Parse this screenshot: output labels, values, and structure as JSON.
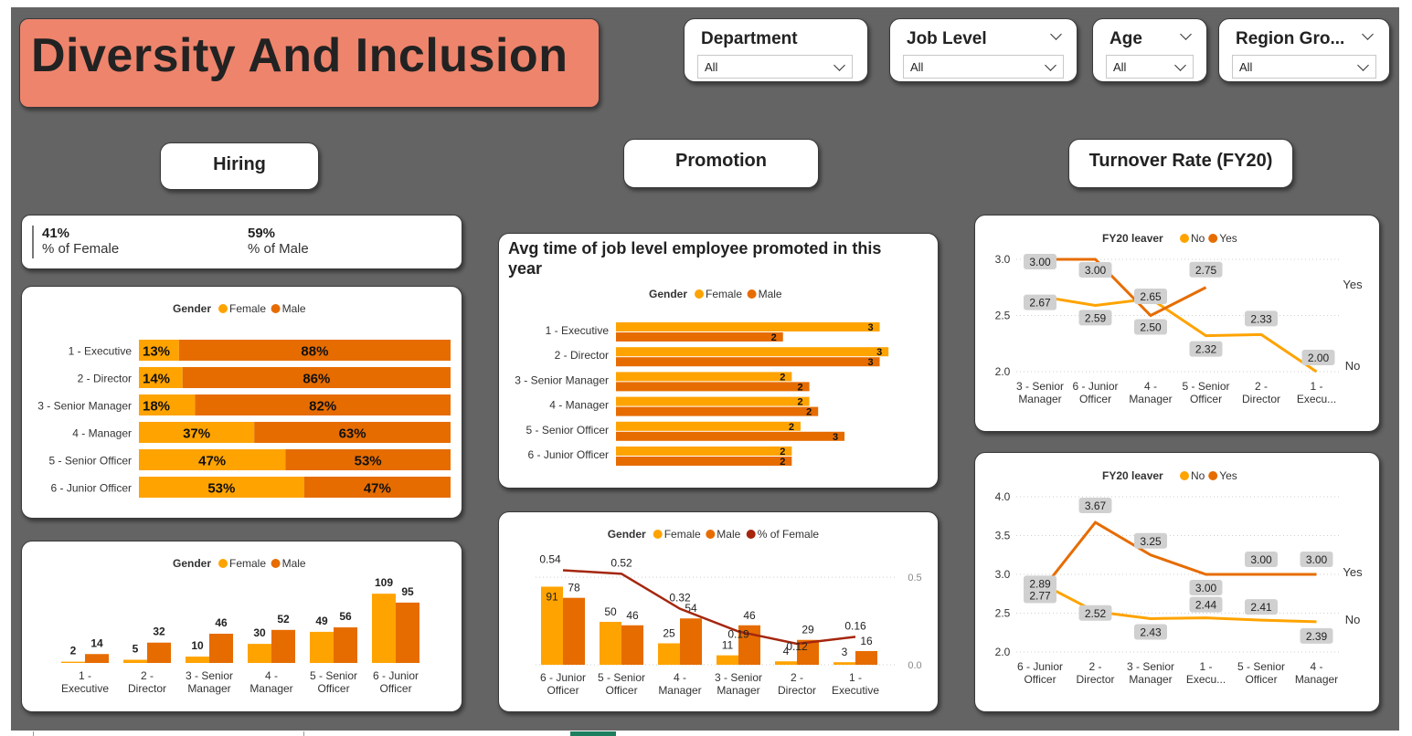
{
  "page": {
    "title": "Diversity And Inclusion"
  },
  "colors": {
    "female": "#ffa300",
    "male": "#e66c00",
    "pct_line": "#a5260d",
    "yes": "#e66c00",
    "no": "#ffa300",
    "banner": "#ee846c",
    "canvas": "#646464"
  },
  "filters": [
    {
      "title": "Department",
      "value": "All"
    },
    {
      "title": "Job Level",
      "value": "All"
    },
    {
      "title": "Age",
      "value": "All"
    },
    {
      "title": "Region Gro...",
      "value": "All"
    }
  ],
  "sections": {
    "hiring": "Hiring",
    "promotion": "Promotion",
    "turnover": "Turnover Rate (FY20)"
  },
  "kpi": {
    "female_pct": "41%",
    "female_label": "% of Female",
    "male_pct": "59%",
    "male_label": "% of Male"
  },
  "chart_data": [
    {
      "id": "hiring_pct",
      "type": "bar",
      "stacked": "100%",
      "orientation": "horizontal",
      "legend_title": "Gender",
      "legend_position": "top",
      "categories": [
        "1 - Executive",
        "2 - Director",
        "3 - Senior Manager",
        "4 - Manager",
        "5 - Senior Officer",
        "6 - Junior Officer"
      ],
      "series": [
        {
          "name": "Female",
          "values": [
            13,
            14,
            18,
            37,
            47,
            53
          ],
          "labels": [
            "13%",
            "14%",
            "18%",
            "37%",
            "47%",
            "53%"
          ]
        },
        {
          "name": "Male",
          "values": [
            88,
            86,
            82,
            63,
            53,
            47
          ],
          "labels": [
            "88%",
            "86%",
            "82%",
            "63%",
            "53%",
            "47%"
          ]
        }
      ]
    },
    {
      "id": "hiring_count",
      "type": "bar",
      "orientation": "vertical",
      "legend_title": "Gender",
      "legend_position": "top",
      "categories": [
        "1 - Executive",
        "2 - Director",
        "3 - Senior Manager",
        "4 - Manager",
        "5 - Senior Officer",
        "6 - Junior Officer"
      ],
      "series": [
        {
          "name": "Female",
          "values": [
            2,
            5,
            10,
            30,
            49,
            109
          ]
        },
        {
          "name": "Male",
          "values": [
            14,
            32,
            46,
            52,
            56,
            95
          ]
        }
      ]
    },
    {
      "id": "promotion_time",
      "type": "bar",
      "orientation": "horizontal",
      "title": "Avg time of job level employee promoted in this year",
      "legend_title": "Gender",
      "legend_position": "top",
      "categories": [
        "1 - Executive",
        "2 - Director",
        "3 - Senior Manager",
        "4 - Manager",
        "5 - Senior Officer",
        "6 - Junior Officer"
      ],
      "series": [
        {
          "name": "Female",
          "values": [
            3.0,
            3.1,
            2.0,
            2.2,
            2.1,
            2.0
          ],
          "labels": [
            "3",
            "3",
            "2",
            "2",
            "2",
            "2"
          ]
        },
        {
          "name": "Male",
          "values": [
            1.9,
            3.0,
            2.2,
            2.3,
            2.6,
            2.0
          ],
          "labels": [
            "2",
            "3",
            "2",
            "2",
            "3",
            "2"
          ]
        }
      ]
    },
    {
      "id": "promotion_count",
      "type": "bar",
      "orientation": "vertical",
      "combo_line": true,
      "legend_title": "Gender",
      "legend_position": "top",
      "categories": [
        "6 - Junior Officer",
        "5 - Senior Officer",
        "4 - Manager",
        "3 - Senior Manager",
        "2 - Director",
        "1 - Executive"
      ],
      "series": [
        {
          "name": "Female",
          "values": [
            91,
            50,
            25,
            11,
            4,
            3
          ]
        },
        {
          "name": "Male",
          "values": [
            78,
            46,
            54,
            46,
            29,
            16
          ]
        },
        {
          "name": "% of Female",
          "axis": "secondary",
          "values": [
            0.54,
            0.52,
            0.32,
            0.19,
            0.12,
            0.16
          ],
          "labels": [
            "0.54",
            "0.52",
            "0.32",
            "0.19",
            "0.12",
            "0.16"
          ]
        }
      ],
      "secondary_ticks": [
        "0.5",
        "0.0"
      ]
    },
    {
      "id": "turnover_1",
      "type": "line",
      "legend_title": "FY20 leaver",
      "legend_position": "top",
      "categories": [
        "3 - Senior Manager",
        "6 - Junior Officer",
        "4 - Manager",
        "5 - Senior Officer",
        "2 - Director",
        "1 - Execu..."
      ],
      "ylim": [
        2.0,
        3.0
      ],
      "yticks": [
        "3.0",
        "2.5",
        "2.0"
      ],
      "series": [
        {
          "name": "No",
          "values": [
            2.67,
            2.59,
            2.65,
            2.32,
            2.33,
            2.0
          ],
          "labels": [
            "2.67",
            "2.59",
            "",
            "2.32",
            "2.33",
            "2.00"
          ],
          "end_label": "No"
        },
        {
          "name": "Yes",
          "values": [
            3.0,
            3.0,
            2.5,
            2.75,
            null,
            null
          ],
          "labels": [
            "3.00",
            "3.00",
            "2.50",
            "2.75",
            "",
            ""
          ],
          "end_label": "Yes"
        }
      ],
      "extra_label": "2.65"
    },
    {
      "id": "turnover_2",
      "type": "line",
      "legend_title": "FY20 leaver",
      "legend_position": "top",
      "categories": [
        "6 - Junior Officer",
        "2 - Director",
        "3 - Senior Manager",
        "1 - Execu...",
        "5 - Senior Officer",
        "4 - Manager"
      ],
      "ylim": [
        2.0,
        4.0
      ],
      "yticks": [
        "4.0",
        "3.5",
        "3.0",
        "2.5",
        "2.0"
      ],
      "series": [
        {
          "name": "No",
          "values": [
            2.89,
            2.52,
            2.43,
            2.44,
            2.41,
            2.39
          ],
          "labels": [
            "2.89",
            "2.52",
            "2.43",
            "2.44",
            "2.41",
            "2.39"
          ],
          "end_label": "No"
        },
        {
          "name": "Yes",
          "values": [
            2.77,
            3.67,
            3.25,
            3.0,
            3.0,
            3.0
          ],
          "labels": [
            "2.77",
            "3.67",
            "3.25",
            "3.00",
            "3.00",
            "3.00"
          ],
          "end_label": "Yes"
        }
      ]
    }
  ]
}
